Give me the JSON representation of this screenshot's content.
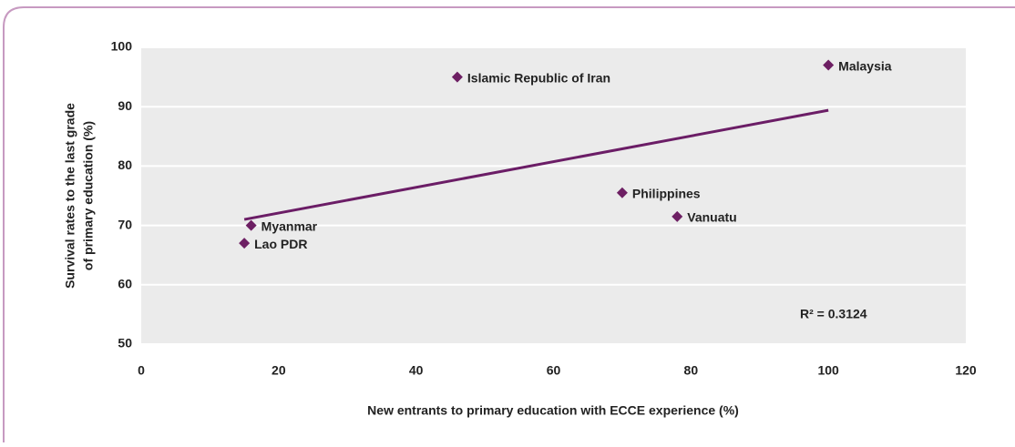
{
  "chart_data": {
    "type": "scatter",
    "xlabel": "New entrants to primary education with ECCE experience (%)",
    "ylabel": [
      "Survival rates to the last grade",
      "of primary education (%)"
    ],
    "labels": [
      "Islamic Republic of Iran",
      "Malaysia",
      "Philippines",
      "Vanuatu",
      "Myanmar",
      "Lao PDR"
    ],
    "x": [
      46,
      100,
      70,
      78,
      16,
      15
    ],
    "y": [
      95,
      97,
      75.5,
      71.5,
      70,
      67
    ],
    "color": "#6d1f63",
    "trendline": {
      "x": [
        15,
        100
      ],
      "y": [
        71,
        89.4
      ],
      "color": "#6b1d66"
    },
    "annotation": "R² = 0.3124",
    "xlim": [
      0,
      120
    ],
    "xticks": [
      0,
      20,
      40,
      60,
      80,
      100,
      120
    ],
    "ylim": [
      50,
      100
    ],
    "yticks": [
      50,
      60,
      70,
      80,
      90,
      100
    ],
    "grid": true
  }
}
